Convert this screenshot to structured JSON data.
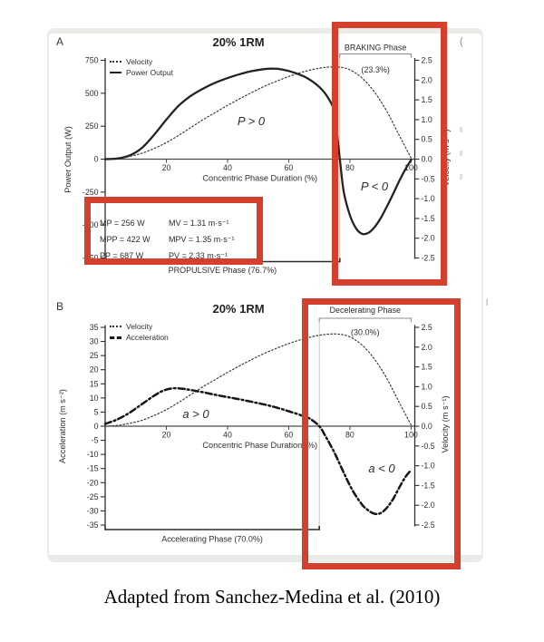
{
  "figure": {
    "caption": "Adapted from Sanchez-Medina et al. (2010)",
    "highlight_color": "#d5402d",
    "highlights": [
      {
        "name": "stats-box-highlight"
      },
      {
        "name": "braking-phase-highlight"
      },
      {
        "name": "decelerating-phase-highlight"
      }
    ],
    "edge_artifacts": {
      "paren": "(",
      "tick": "l"
    }
  },
  "chart_data": [
    {
      "id": "A",
      "type": "line",
      "panel_label": "A",
      "title": "20% 1RM",
      "x_axis": {
        "label": "Concentric Phase Duration (%)",
        "range": [
          0,
          100
        ],
        "ticks": [
          20,
          40,
          60,
          80,
          100
        ]
      },
      "left_axis": {
        "label": "Power Output (W)",
        "range": [
          -750,
          750
        ],
        "ticks": [
          750,
          500,
          250,
          0,
          -250,
          -500,
          -750
        ]
      },
      "right_axis": {
        "label": "Velocity (m s⁻¹)",
        "range": [
          -2.5,
          2.5
        ],
        "format": "1dp",
        "ticks": [
          2.5,
          2.0,
          1.5,
          1.0,
          0.5,
          0.0,
          -0.5,
          -1.0,
          -1.5,
          -2.0,
          -2.5
        ]
      },
      "legend": [
        {
          "label": "Velocity",
          "style": "dotted"
        },
        {
          "label": "Power Output",
          "style": "solid"
        }
      ],
      "series": [
        {
          "name": "Velocity",
          "axis": "right",
          "style": "dotted",
          "points": [
            [
              0,
              0
            ],
            [
              4,
              0.02
            ],
            [
              8,
              0.07
            ],
            [
              12,
              0.15
            ],
            [
              16,
              0.27
            ],
            [
              20,
              0.42
            ],
            [
              24,
              0.6
            ],
            [
              28,
              0.8
            ],
            [
              32,
              1.0
            ],
            [
              36,
              1.18
            ],
            [
              40,
              1.36
            ],
            [
              44,
              1.53
            ],
            [
              48,
              1.69
            ],
            [
              52,
              1.84
            ],
            [
              56,
              1.97
            ],
            [
              60,
              2.09
            ],
            [
              64,
              2.19
            ],
            [
              68,
              2.27
            ],
            [
              72,
              2.32
            ],
            [
              76,
              2.33
            ],
            [
              80,
              2.26
            ],
            [
              84,
              2.05
            ],
            [
              88,
              1.7
            ],
            [
              92,
              1.22
            ],
            [
              96,
              0.62
            ],
            [
              100,
              0.03
            ]
          ]
        },
        {
          "name": "Power Output",
          "axis": "left",
          "style": "solid",
          "points": [
            [
              0,
              0
            ],
            [
              4,
              5
            ],
            [
              8,
              28
            ],
            [
              12,
              85
            ],
            [
              16,
              185
            ],
            [
              20,
              300
            ],
            [
              24,
              405
            ],
            [
              28,
              480
            ],
            [
              32,
              535
            ],
            [
              36,
              580
            ],
            [
              40,
              615
            ],
            [
              44,
              645
            ],
            [
              48,
              668
            ],
            [
              52,
              683
            ],
            [
              55,
              687
            ],
            [
              58,
              680
            ],
            [
              62,
              655
            ],
            [
              66,
              615
            ],
            [
              70,
              548
            ],
            [
              73,
              460
            ],
            [
              75,
              340
            ],
            [
              76.7,
              0
            ],
            [
              78,
              -250
            ],
            [
              80,
              -425
            ],
            [
              82,
              -525
            ],
            [
              84,
              -567
            ],
            [
              86,
              -560
            ],
            [
              88,
              -518
            ],
            [
              90,
              -450
            ],
            [
              93,
              -318
            ],
            [
              96,
              -172
            ],
            [
              98,
              -82
            ],
            [
              100,
              -6
            ]
          ]
        }
      ],
      "annotations": [
        {
          "text": "P > 0"
        },
        {
          "text": "P < 0"
        }
      ],
      "top_bracket": {
        "label": "BRAKING Phase",
        "sublabel": "(23.3%)",
        "from_pct": 76.7,
        "to_pct": 100
      },
      "bottom_bracket": {
        "label": "PROPULSIVE Phase (76.7%)",
        "from_pct": 0,
        "to_pct": 76.7
      },
      "stats_box": {
        "rows": [
          [
            "MP = 256 W",
            "MV = 1.31 m·s⁻¹"
          ],
          [
            "MPP = 422 W",
            "MPV = 1.35 m·s⁻¹"
          ],
          [
            "PP = 687 W",
            "PV = 2.33 m·s⁻¹"
          ]
        ]
      }
    },
    {
      "id": "B",
      "type": "line",
      "panel_label": "B",
      "title": "20% 1RM",
      "x_axis": {
        "label": "Concentric Phase Duration (%)",
        "range": [
          0,
          100
        ],
        "ticks": [
          20,
          40,
          60,
          80,
          100
        ]
      },
      "left_axis": {
        "label": "Acceleration (m s⁻²)",
        "range": [
          -35,
          35
        ],
        "ticks": [
          35,
          30,
          25,
          20,
          15,
          10,
          5,
          0,
          -5,
          -10,
          -15,
          -20,
          -25,
          -30,
          -35
        ]
      },
      "right_axis": {
        "label": "Velocity (m s⁻¹)",
        "range": [
          -2.5,
          2.5
        ],
        "format": "1dp",
        "ticks": [
          2.5,
          2.0,
          1.5,
          1.0,
          0.5,
          0.0,
          -0.5,
          -1.0,
          -1.5,
          -2.0,
          -2.5
        ]
      },
      "legend": [
        {
          "label": "Velocity",
          "style": "dotted"
        },
        {
          "label": "Acceleration",
          "style": "dashdot"
        }
      ],
      "series": [
        {
          "name": "Velocity",
          "axis": "right",
          "style": "dotted",
          "points": [
            [
              0,
              0
            ],
            [
              4,
              0.02
            ],
            [
              8,
              0.07
            ],
            [
              12,
              0.15
            ],
            [
              16,
              0.27
            ],
            [
              20,
              0.42
            ],
            [
              24,
              0.6
            ],
            [
              28,
              0.8
            ],
            [
              32,
              1.0
            ],
            [
              36,
              1.18
            ],
            [
              40,
              1.36
            ],
            [
              44,
              1.53
            ],
            [
              48,
              1.69
            ],
            [
              52,
              1.84
            ],
            [
              56,
              1.97
            ],
            [
              60,
              2.09
            ],
            [
              64,
              2.19
            ],
            [
              68,
              2.27
            ],
            [
              72,
              2.32
            ],
            [
              76,
              2.33
            ],
            [
              80,
              2.26
            ],
            [
              84,
              2.05
            ],
            [
              88,
              1.7
            ],
            [
              92,
              1.22
            ],
            [
              96,
              0.62
            ],
            [
              100,
              0.03
            ]
          ]
        },
        {
          "name": "Acceleration",
          "axis": "left",
          "style": "dashdot",
          "points": [
            [
              0,
              0.8
            ],
            [
              4,
              2.4
            ],
            [
              8,
              4.8
            ],
            [
              12,
              7.8
            ],
            [
              16,
              10.8
            ],
            [
              19,
              12.6
            ],
            [
              22,
              13.4
            ],
            [
              25,
              13.3
            ],
            [
              28,
              12.8
            ],
            [
              32,
              12.0
            ],
            [
              36,
              11.1
            ],
            [
              40,
              10.3
            ],
            [
              44,
              9.5
            ],
            [
              48,
              8.6
            ],
            [
              52,
              7.7
            ],
            [
              56,
              6.6
            ],
            [
              60,
              5.3
            ],
            [
              64,
              3.9
            ],
            [
              67,
              2.6
            ],
            [
              70,
              0
            ],
            [
              72,
              -3.5
            ],
            [
              75,
              -9.5
            ],
            [
              78,
              -16.5
            ],
            [
              81,
              -23
            ],
            [
              84,
              -27.8
            ],
            [
              86,
              -29.8
            ],
            [
              88,
              -31
            ],
            [
              90,
              -30.8
            ],
            [
              92,
              -29
            ],
            [
              94,
              -26
            ],
            [
              96,
              -22
            ],
            [
              98,
              -18.2
            ],
            [
              100,
              -15.5
            ]
          ]
        }
      ],
      "annotations": [
        {
          "text": "a > 0"
        },
        {
          "text": "a < 0"
        }
      ],
      "top_bracket": {
        "label": "Decelerating Phase",
        "sublabel": "(30.0%)",
        "from_pct": 70,
        "to_pct": 100
      },
      "bottom_bracket": {
        "label": "Accelerating Phase (70.0%)",
        "from_pct": 0,
        "to_pct": 70
      }
    }
  ]
}
